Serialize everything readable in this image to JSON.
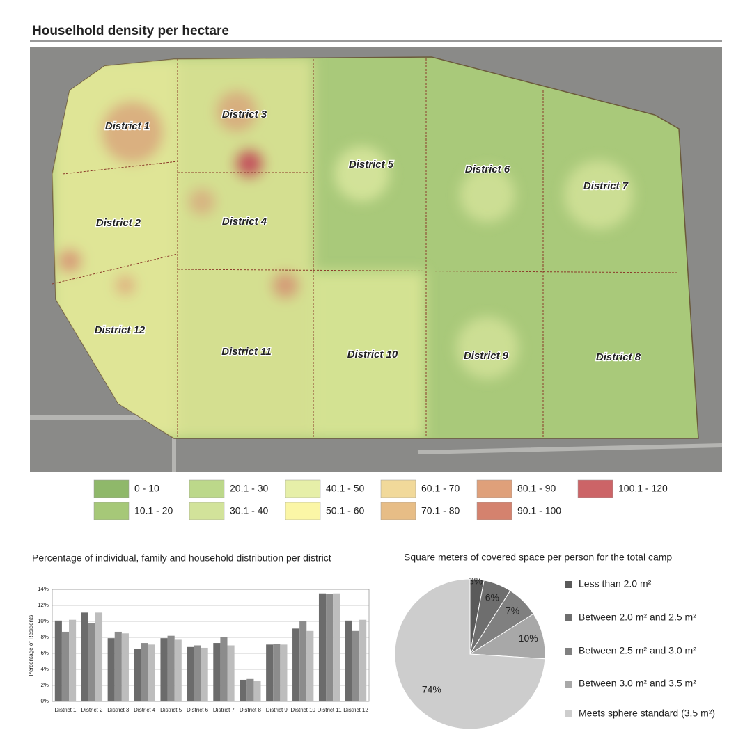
{
  "title": "Houselhold density per hectare",
  "map": {
    "districts": [
      "District 1",
      "District 2",
      "District 3",
      "District 4",
      "District 5",
      "District 6",
      "District 7",
      "District 8",
      "District 9",
      "District 10",
      "District 11",
      "District 12"
    ]
  },
  "legend": [
    {
      "label": "0 - 10",
      "color": "#8fb86a"
    },
    {
      "label": "10.1 - 20",
      "color": "#a6c878"
    },
    {
      "label": "20.1 - 30",
      "color": "#bcd88a"
    },
    {
      "label": "30.1 - 40",
      "color": "#d2e39a"
    },
    {
      "label": "40.1 - 50",
      "color": "#e6efa8"
    },
    {
      "label": "50.1 - 60",
      "color": "#fbf6a6"
    },
    {
      "label": "60.1 - 70",
      "color": "#f1d99a"
    },
    {
      "label": "70.1 - 80",
      "color": "#e7bd86"
    },
    {
      "label": "80.1 - 90",
      "color": "#dfa07a"
    },
    {
      "label": "90.1 - 100",
      "color": "#d4826e"
    },
    {
      "label": "100.1 - 120",
      "color": "#cc6467"
    }
  ],
  "chart_data": [
    {
      "type": "bar",
      "title": "Percentage of individual, family and household distribution per district",
      "y_label": "Percentage of Residents",
      "categories": [
        "District 1",
        "District 2",
        "District 3",
        "District 4",
        "District 5",
        "District 6",
        "District 7",
        "District 8",
        "District 9",
        "District 10",
        "District 11",
        "District 12"
      ],
      "series": [
        {
          "color": "#6b6b6b",
          "values": [
            10.1,
            11.1,
            7.9,
            6.6,
            7.9,
            6.8,
            7.3,
            2.7,
            7.1,
            9.1,
            13.5,
            10.1
          ]
        },
        {
          "color": "#8c8c8c",
          "values": [
            8.7,
            9.8,
            8.7,
            7.3,
            8.2,
            7.0,
            8.0,
            2.8,
            7.2,
            10.0,
            13.4,
            8.8
          ]
        },
        {
          "color": "#bdbdbd",
          "values": [
            10.2,
            11.1,
            8.5,
            7.1,
            7.7,
            6.7,
            7.0,
            2.6,
            7.1,
            8.8,
            13.5,
            10.2
          ]
        }
      ],
      "ylim": [
        0,
        14
      ],
      "yticks": [
        {
          "value": 0,
          "label": "0%"
        },
        {
          "value": 2,
          "label": "2%"
        },
        {
          "value": 4,
          "label": "4%"
        },
        {
          "value": 6,
          "label": "6%"
        },
        {
          "value": 8,
          "label": "8%"
        },
        {
          "value": 10,
          "label": "10%"
        },
        {
          "value": 12,
          "label": "12%"
        },
        {
          "value": 14,
          "label": "14%"
        }
      ],
      "grid": true
    },
    {
      "type": "pie",
      "title": "Square meters of covered space per person for the total camp",
      "categories": [
        "Less than 2.0 m²",
        "Between 2.0 m² and 2.5 m²",
        "Between 2.5 m² and 3.0 m²",
        "Between 3.0 m² and 3.5 m²",
        "Meets sphere standard (3.5 m²)"
      ],
      "values": [
        3,
        6,
        7,
        10,
        74
      ],
      "value_labels": [
        "3%",
        "6%",
        "7%",
        "10%",
        "74%"
      ],
      "colors": [
        "#5a5a5a",
        "#6e6e6e",
        "#808080",
        "#a8a8a8",
        "#cdcdcd"
      ]
    }
  ]
}
